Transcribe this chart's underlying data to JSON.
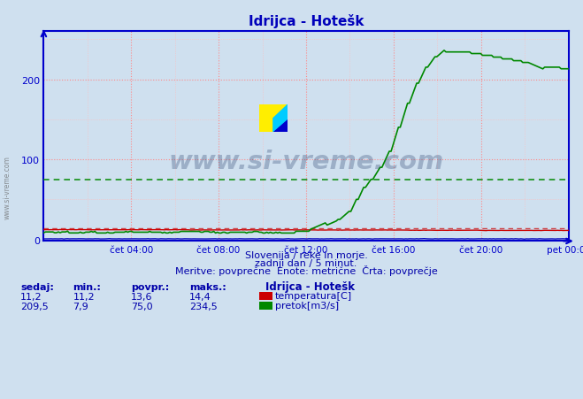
{
  "title": "Idrijca - Hotešk",
  "background_color": "#cfe0ef",
  "plot_bg_color": "#cfe0ef",
  "grid_color_major": "#ff8888",
  "grid_color_minor": "#ffbbbb",
  "xlim": [
    0,
    288
  ],
  "ylim": [
    -2,
    260
  ],
  "yticks": [
    0,
    100,
    200
  ],
  "xtick_labels": [
    "čet 04:00",
    "čet 08:00",
    "čet 12:00",
    "čet 16:00",
    "čet 20:00",
    "pet 00:00"
  ],
  "xtick_positions": [
    48,
    96,
    144,
    192,
    240,
    288
  ],
  "avg_flow": 75.0,
  "avg_temp": 13.6,
  "temp_color": "#cc0000",
  "flow_color": "#008800",
  "height_color": "#0000bb",
  "avg_line_color_flow": "#008800",
  "avg_line_color_temp": "#cc0000",
  "watermark": "www.si-vreme.com",
  "watermark_color": "#1a3060",
  "subtitle1": "Slovenija / reke in morje.",
  "subtitle2": "zadnji dan / 5 minut.",
  "subtitle3": "Meritve: povprečne  Enote: metrične  Črta: povprečje",
  "legend_title": "Idrijca - Hotešk",
  "legend_items": [
    {
      "label": "temperatura[C]",
      "color": "#cc0000"
    },
    {
      "label": "pretok[m3/s]",
      "color": "#008800"
    }
  ],
  "stats_headers": [
    "sedaj:",
    "min.:",
    "povpr.:",
    "maks.:"
  ],
  "stats_temp": [
    11.2,
    11.2,
    13.6,
    14.4
  ],
  "stats_flow": [
    209.5,
    7.9,
    75.0,
    234.5
  ],
  "axis_color": "#cc0000",
  "spine_color": "#0000cc",
  "tick_color": "#0000cc",
  "title_color": "#0000bb",
  "text_color": "#0000aa"
}
